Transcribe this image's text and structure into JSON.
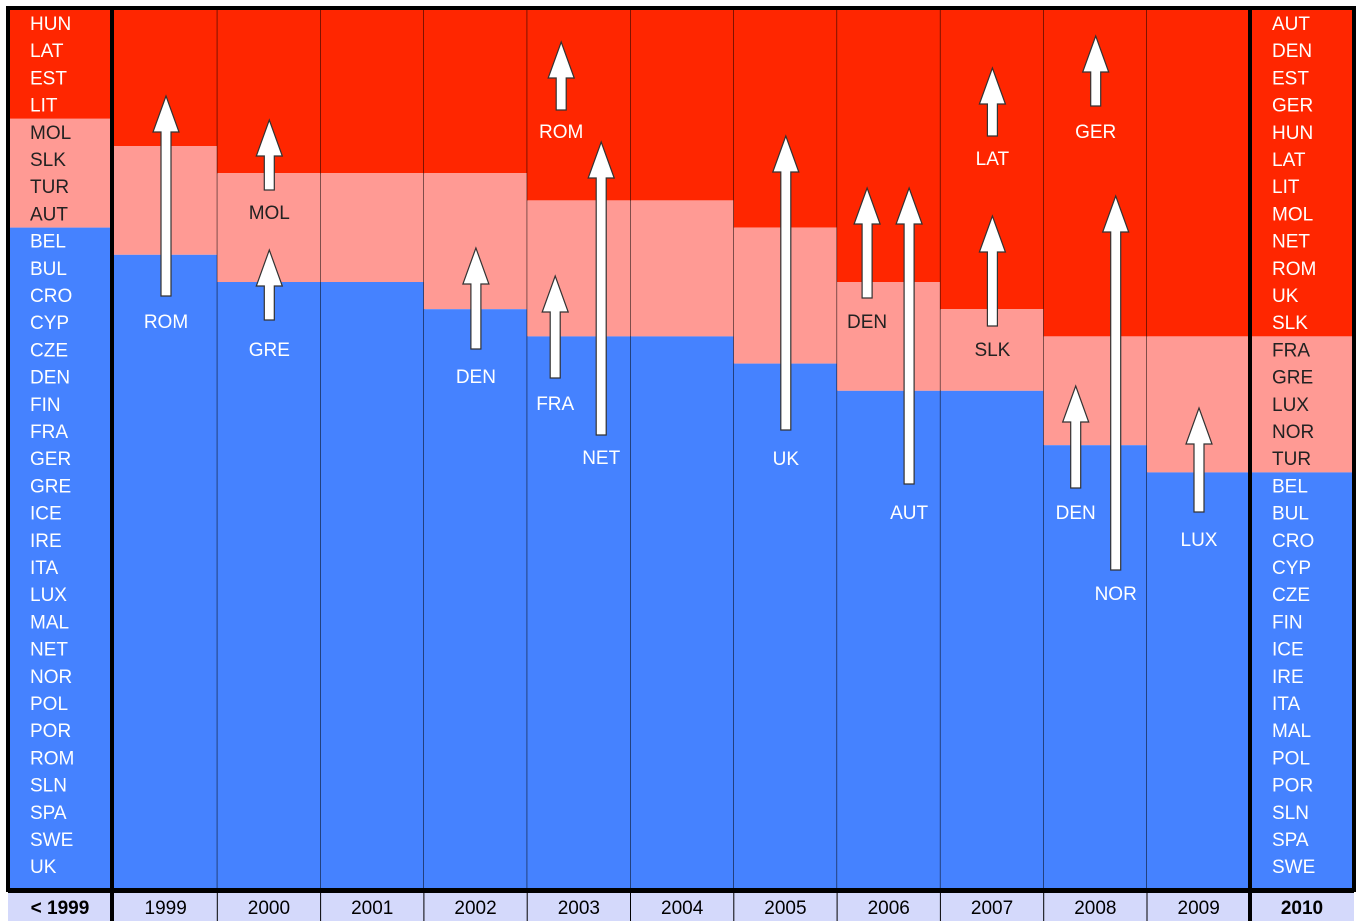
{
  "colors": {
    "red": "#ff2600",
    "pink": "#ff9a94",
    "blue": "#4582ff",
    "footer": "#d4d9fb",
    "line": "#000000",
    "arrow": "#ffffff"
  },
  "periods": [
    "< 1999",
    "1999",
    "2000",
    "2001",
    "2002",
    "2003",
    "2004",
    "2005",
    "2006",
    "2007",
    "2008",
    "2009",
    "2010"
  ],
  "side_columns": {
    "left": {
      "red": [
        "HUN",
        "LAT",
        "EST",
        "LIT"
      ],
      "pink": [
        "MOL",
        "SLK",
        "TUR",
        "AUT"
      ],
      "blue": [
        "BEL",
        "BUL",
        "CRO",
        "CYP",
        "CZE",
        "DEN",
        "FIN",
        "FRA",
        "GER",
        "GRE",
        "ICE",
        "IRE",
        "ITA",
        "LUX",
        "MAL",
        "NET",
        "NOR",
        "POL",
        "POR",
        "ROM",
        "SLN",
        "SPA",
        "SWE",
        "UK"
      ]
    },
    "right": {
      "red": [
        "AUT",
        "DEN",
        "EST",
        "GER",
        "HUN",
        "LAT",
        "LIT",
        "MOL",
        "NET",
        "ROM",
        "UK",
        "SLK"
      ],
      "pink": [
        "FRA",
        "GRE",
        "LUX",
        "NOR",
        "TUR"
      ],
      "blue": [
        "BEL",
        "BUL",
        "CRO",
        "CYP",
        "CZE",
        "FIN",
        "ICE",
        "IRE",
        "ITA",
        "MAL",
        "POL",
        "POR",
        "SLN",
        "SPA",
        "SWE"
      ]
    }
  },
  "year_columns": [
    {
      "year": "1999",
      "red": 5,
      "pink": 4,
      "moves": [
        {
          "country": "ROM",
          "from": "blue",
          "to": "red"
        }
      ]
    },
    {
      "year": "2000",
      "red": 6,
      "pink": 4,
      "moves": [
        {
          "country": "GRE",
          "from": "blue",
          "to": "pink"
        },
        {
          "country": "MOL",
          "from": "pink",
          "to": "red"
        }
      ]
    },
    {
      "year": "2001",
      "red": 6,
      "pink": 4,
      "moves": []
    },
    {
      "year": "2002",
      "red": 6,
      "pink": 5,
      "moves": [
        {
          "country": "DEN",
          "from": "blue",
          "to": "pink"
        }
      ]
    },
    {
      "year": "2003",
      "red": 7,
      "pink": 5,
      "moves": [
        {
          "country": "FRA",
          "from": "blue",
          "to": "pink"
        },
        {
          "country": "NET",
          "from": "blue",
          "to": "red"
        },
        {
          "country": "ROM",
          "from": "red",
          "to": "red"
        }
      ]
    },
    {
      "year": "2004",
      "red": 7,
      "pink": 5,
      "moves": []
    },
    {
      "year": "2005",
      "red": 8,
      "pink": 5,
      "moves": [
        {
          "country": "UK",
          "from": "blue",
          "to": "red"
        }
      ]
    },
    {
      "year": "2006",
      "red": 10,
      "pink": 4,
      "moves": [
        {
          "country": "DEN",
          "from": "pink",
          "to": "red"
        },
        {
          "country": "AUT",
          "from": "blue",
          "to": "red"
        }
      ]
    },
    {
      "year": "2007",
      "red": 11,
      "pink": 3,
      "moves": [
        {
          "country": "LAT",
          "from": "red",
          "to": "red"
        },
        {
          "country": "SLK",
          "from": "pink",
          "to": "red"
        }
      ]
    },
    {
      "year": "2008",
      "red": 12,
      "pink": 4,
      "moves": [
        {
          "country": "DEN",
          "from": "red",
          "to": "red"
        },
        {
          "country": "NOR",
          "from": "blue",
          "to": "pink"
        },
        {
          "country": "GER",
          "from": "blue",
          "to": "red"
        }
      ]
    },
    {
      "year": "2009",
      "red": 12,
      "pink": 5,
      "moves": [
        {
          "country": "LUX",
          "from": "blue",
          "to": "pink"
        }
      ]
    }
  ]
}
